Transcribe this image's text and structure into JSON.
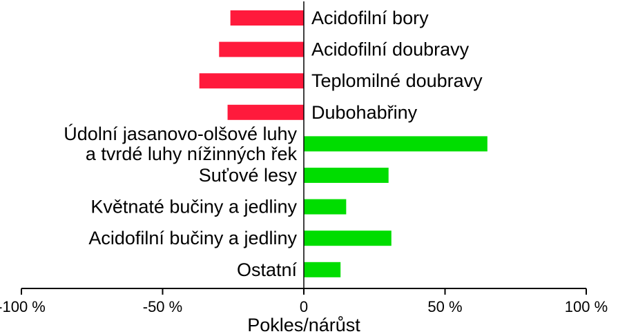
{
  "chart_data": {
    "type": "bar",
    "orientation": "horizontal",
    "categories": [
      "Acidofilní bory",
      "Acidofilní doubravy",
      "Teplomilné doubravy",
      "Dubohabřiny",
      "Údolní jasanovo-olšové luhy\na tvrdé luhy nížinných řek",
      "Suťové lesy",
      "Květnaté bučiny a jedliny",
      "Acidofilní bučiny a jedliny",
      "Ostatní"
    ],
    "values": [
      -26,
      -30,
      -37,
      -27,
      65,
      30,
      15,
      31,
      13
    ],
    "xlim": [
      -100,
      100
    ],
    "xticks": [
      -100,
      -50,
      0,
      50,
      100
    ],
    "xtick_labels": [
      "-100 %",
      "-50 %",
      "0",
      "50 %",
      "100 %"
    ],
    "xlabel": "Pokles/nárůst",
    "ylabel": "",
    "title": "",
    "grid": false,
    "colors": {
      "decrease": "#ff1a3c",
      "increase": "#00dd00",
      "label_default": "#000000",
      "label_muted": "#7f7f7f"
    }
  }
}
